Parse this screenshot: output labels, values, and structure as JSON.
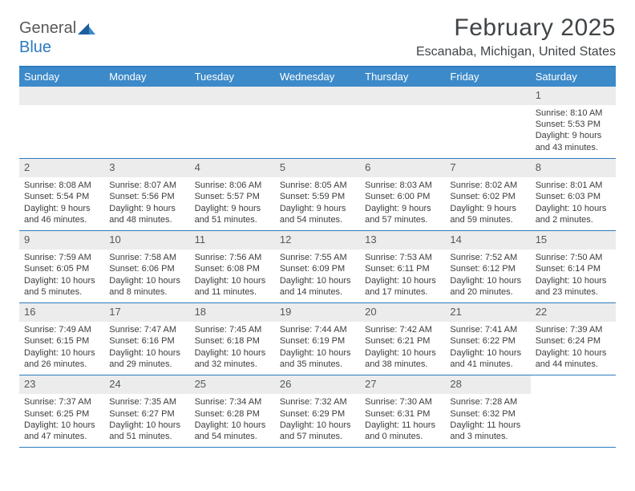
{
  "logo": {
    "general": "General",
    "blue": "Blue"
  },
  "title": "February 2025",
  "location": "Escanaba, Michigan, United States",
  "colors": {
    "header_bar": "#3c8ac9",
    "border": "#2d7bbf",
    "daynum_bg": "#ececec",
    "text": "#3a3c3e",
    "title_text": "#404447"
  },
  "dayNames": [
    "Sunday",
    "Monday",
    "Tuesday",
    "Wednesday",
    "Thursday",
    "Friday",
    "Saturday"
  ],
  "weeks": [
    [
      null,
      null,
      null,
      null,
      null,
      null,
      {
        "n": "1",
        "sr": "8:10 AM",
        "ss": "5:53 PM",
        "dl": "9 hours and 43 minutes."
      }
    ],
    [
      {
        "n": "2",
        "sr": "8:08 AM",
        "ss": "5:54 PM",
        "dl": "9 hours and 46 minutes."
      },
      {
        "n": "3",
        "sr": "8:07 AM",
        "ss": "5:56 PM",
        "dl": "9 hours and 48 minutes."
      },
      {
        "n": "4",
        "sr": "8:06 AM",
        "ss": "5:57 PM",
        "dl": "9 hours and 51 minutes."
      },
      {
        "n": "5",
        "sr": "8:05 AM",
        "ss": "5:59 PM",
        "dl": "9 hours and 54 minutes."
      },
      {
        "n": "6",
        "sr": "8:03 AM",
        "ss": "6:00 PM",
        "dl": "9 hours and 57 minutes."
      },
      {
        "n": "7",
        "sr": "8:02 AM",
        "ss": "6:02 PM",
        "dl": "9 hours and 59 minutes."
      },
      {
        "n": "8",
        "sr": "8:01 AM",
        "ss": "6:03 PM",
        "dl": "10 hours and 2 minutes."
      }
    ],
    [
      {
        "n": "9",
        "sr": "7:59 AM",
        "ss": "6:05 PM",
        "dl": "10 hours and 5 minutes."
      },
      {
        "n": "10",
        "sr": "7:58 AM",
        "ss": "6:06 PM",
        "dl": "10 hours and 8 minutes."
      },
      {
        "n": "11",
        "sr": "7:56 AM",
        "ss": "6:08 PM",
        "dl": "10 hours and 11 minutes."
      },
      {
        "n": "12",
        "sr": "7:55 AM",
        "ss": "6:09 PM",
        "dl": "10 hours and 14 minutes."
      },
      {
        "n": "13",
        "sr": "7:53 AM",
        "ss": "6:11 PM",
        "dl": "10 hours and 17 minutes."
      },
      {
        "n": "14",
        "sr": "7:52 AM",
        "ss": "6:12 PM",
        "dl": "10 hours and 20 minutes."
      },
      {
        "n": "15",
        "sr": "7:50 AM",
        "ss": "6:14 PM",
        "dl": "10 hours and 23 minutes."
      }
    ],
    [
      {
        "n": "16",
        "sr": "7:49 AM",
        "ss": "6:15 PM",
        "dl": "10 hours and 26 minutes."
      },
      {
        "n": "17",
        "sr": "7:47 AM",
        "ss": "6:16 PM",
        "dl": "10 hours and 29 minutes."
      },
      {
        "n": "18",
        "sr": "7:45 AM",
        "ss": "6:18 PM",
        "dl": "10 hours and 32 minutes."
      },
      {
        "n": "19",
        "sr": "7:44 AM",
        "ss": "6:19 PM",
        "dl": "10 hours and 35 minutes."
      },
      {
        "n": "20",
        "sr": "7:42 AM",
        "ss": "6:21 PM",
        "dl": "10 hours and 38 minutes."
      },
      {
        "n": "21",
        "sr": "7:41 AM",
        "ss": "6:22 PM",
        "dl": "10 hours and 41 minutes."
      },
      {
        "n": "22",
        "sr": "7:39 AM",
        "ss": "6:24 PM",
        "dl": "10 hours and 44 minutes."
      }
    ],
    [
      {
        "n": "23",
        "sr": "7:37 AM",
        "ss": "6:25 PM",
        "dl": "10 hours and 47 minutes."
      },
      {
        "n": "24",
        "sr": "7:35 AM",
        "ss": "6:27 PM",
        "dl": "10 hours and 51 minutes."
      },
      {
        "n": "25",
        "sr": "7:34 AM",
        "ss": "6:28 PM",
        "dl": "10 hours and 54 minutes."
      },
      {
        "n": "26",
        "sr": "7:32 AM",
        "ss": "6:29 PM",
        "dl": "10 hours and 57 minutes."
      },
      {
        "n": "27",
        "sr": "7:30 AM",
        "ss": "6:31 PM",
        "dl": "11 hours and 0 minutes."
      },
      {
        "n": "28",
        "sr": "7:28 AM",
        "ss": "6:32 PM",
        "dl": "11 hours and 3 minutes."
      },
      null
    ]
  ],
  "labels": {
    "sunrise": "Sunrise:",
    "sunset": "Sunset:",
    "daylight": "Daylight:"
  }
}
